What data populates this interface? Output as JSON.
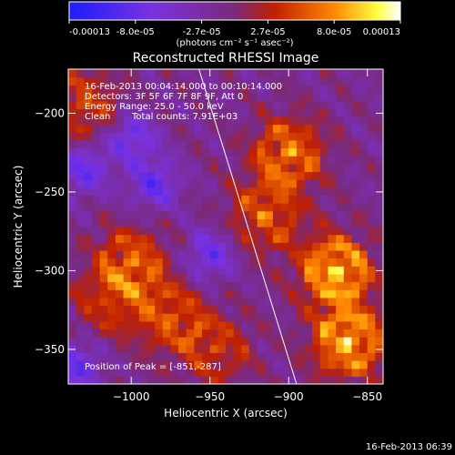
{
  "colorbar": {
    "tick_labels": [
      "-0.00013",
      "-8.0e-05",
      "-2.7e-05",
      "2.7e-05",
      "8.0e-05",
      "0.00013"
    ],
    "units_text": "(photons cm⁻² s⁻¹ asec⁻²)",
    "colors": [
      "#1c1cff",
      "#7a32e0",
      "#7a2a7a",
      "#c02000",
      "#ff8800",
      "#ffff40",
      "#ffffff"
    ]
  },
  "info": {
    "time_range": "16-Feb-2013 00:04:14.000 to 00:10:14.000",
    "detectors": "Detectors: 3F 5F 6F 7F 8F 9F, Att 0",
    "energy": "Energy Range: 25.0 - 50.0 keV",
    "method": "Clean",
    "counts": "Total counts: 7.91E+03",
    "peak": "Position of Peak = [-851,-287]"
  },
  "footer_timestamp": "16-Feb-2013 06:39",
  "chart_data": {
    "type": "heatmap",
    "title": "Reconstructed RHESSI Image",
    "xlabel": "Heliocentric X (arcsec)",
    "ylabel": "Heliocentric Y (arcsec)",
    "xlim": [
      -1040,
      -840
    ],
    "ylim": [
      -372,
      -172
    ],
    "xticks": [
      -1000,
      -950,
      -900,
      -850
    ],
    "yticks": [
      -200,
      -250,
      -300,
      -350
    ],
    "xtick_labels": [
      "−1000",
      "−950",
      "−900",
      "−850"
    ],
    "ytick_labels": [
      "−200",
      "−250",
      "−300",
      "−350"
    ],
    "value_range": [
      -0.00013,
      0.00013
    ],
    "limb_line": {
      "x": [
        -957,
        -895
      ],
      "y": [
        -172,
        -372
      ]
    },
    "peak": {
      "x": -851,
      "y": -287
    },
    "hot_regions": [
      {
        "x": -870,
        "y": -300,
        "strength": 1.0
      },
      {
        "x": -862,
        "y": -345,
        "strength": 0.95
      },
      {
        "x": -900,
        "y": -225,
        "strength": 0.75
      },
      {
        "x": -915,
        "y": -265,
        "strength": 0.6
      },
      {
        "x": -1000,
        "y": -295,
        "strength": 0.65
      },
      {
        "x": -975,
        "y": -330,
        "strength": 0.55
      },
      {
        "x": -1030,
        "y": -195,
        "strength": 0.55
      },
      {
        "x": -945,
        "y": -350,
        "strength": 0.45
      },
      {
        "x": -1015,
        "y": -320,
        "strength": 0.4
      }
    ],
    "cold_regions": [
      {
        "x": -1030,
        "y": -235
      },
      {
        "x": -1000,
        "y": -215
      },
      {
        "x": -985,
        "y": -245
      },
      {
        "x": -1035,
        "y": -360
      },
      {
        "x": -950,
        "y": -290
      }
    ]
  }
}
